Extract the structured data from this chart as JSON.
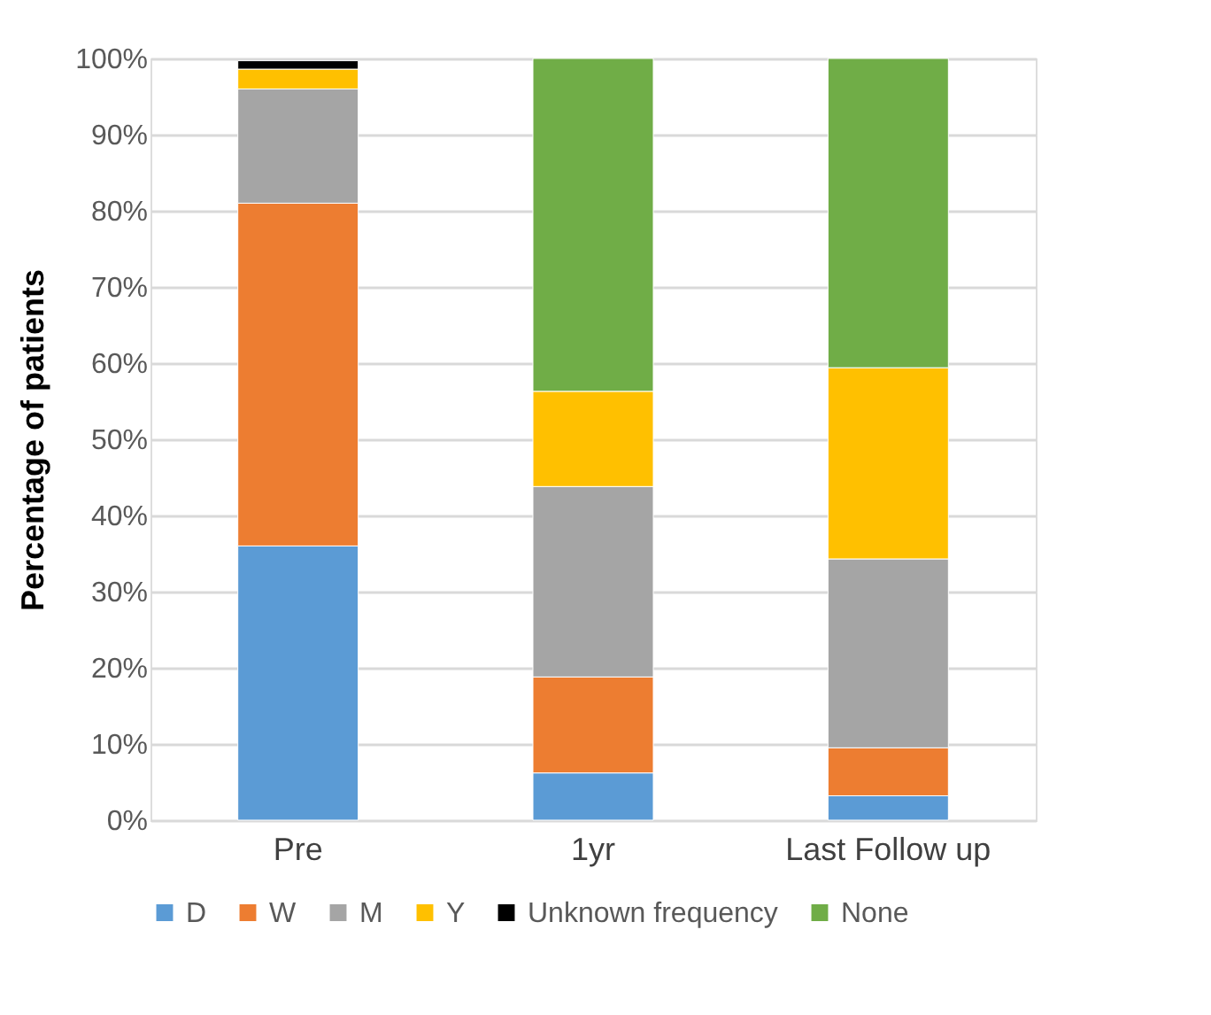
{
  "chart_data": {
    "type": "bar",
    "stacked": true,
    "ylabel": "Percentage of patients",
    "categories": [
      "Pre",
      "1yr",
      "Last Follow up"
    ],
    "series": [
      {
        "name": "D",
        "color": "#5b9bd5",
        "values": [
          36,
          6.2,
          3.2
        ]
      },
      {
        "name": "W",
        "color": "#ed7d31",
        "values": [
          45,
          12.6,
          6.3
        ]
      },
      {
        "name": "M",
        "color": "#a5a5a5",
        "values": [
          15,
          25,
          24.8
        ]
      },
      {
        "name": "Y",
        "color": "#ffc000",
        "values": [
          2.6,
          12.5,
          25.1
        ]
      },
      {
        "name": "Unknown frequency",
        "color": "#000000",
        "values": [
          1.1,
          null,
          null
        ]
      },
      {
        "name": "None",
        "color": "#70ad47",
        "values": [
          null,
          43.7,
          40.6
        ]
      }
    ],
    "ylim": [
      0,
      100
    ],
    "yticks": [
      {
        "value": 0,
        "label": "0%"
      },
      {
        "value": 10,
        "label": "10%"
      },
      {
        "value": 20,
        "label": "20%"
      },
      {
        "value": 30,
        "label": "30%"
      },
      {
        "value": 40,
        "label": "40%"
      },
      {
        "value": 50,
        "label": "50%"
      },
      {
        "value": 60,
        "label": "60%"
      },
      {
        "value": 70,
        "label": "70%"
      },
      {
        "value": 80,
        "label": "80%"
      },
      {
        "value": 90,
        "label": "90%"
      },
      {
        "value": 100,
        "label": "100%"
      }
    ],
    "grid": "y",
    "legend": "bottom"
  }
}
